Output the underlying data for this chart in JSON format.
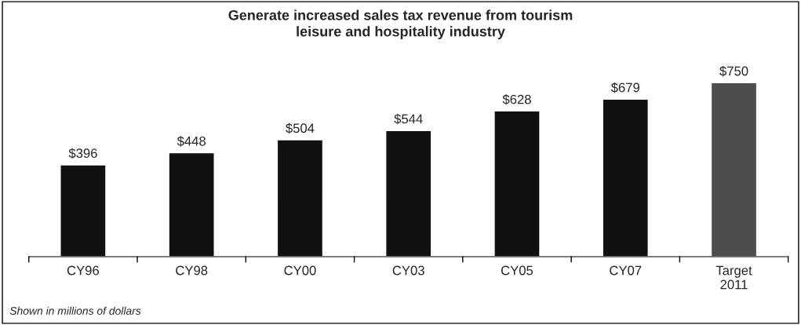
{
  "chart_data": {
    "type": "bar",
    "title": "Generate increased sales tax revenue from tourism\nleisure and hospitality industry",
    "categories": [
      "CY96",
      "CY98",
      "CY00",
      "CY03",
      "CY05",
      "CY07",
      "Target\n2011"
    ],
    "values": [
      396,
      448,
      504,
      544,
      628,
      679,
      750
    ],
    "colors": [
      "#111111",
      "#111111",
      "#111111",
      "#111111",
      "#111111",
      "#111111",
      "#4d4d4d"
    ],
    "value_labels": [
      "$396",
      "$448",
      "$504",
      "$544",
      "$628",
      "$679",
      "$750"
    ],
    "annotations": [
      "Shown in millions of dollars"
    ],
    "tick_labels": "x",
    "grid": false,
    "legend": false
  }
}
